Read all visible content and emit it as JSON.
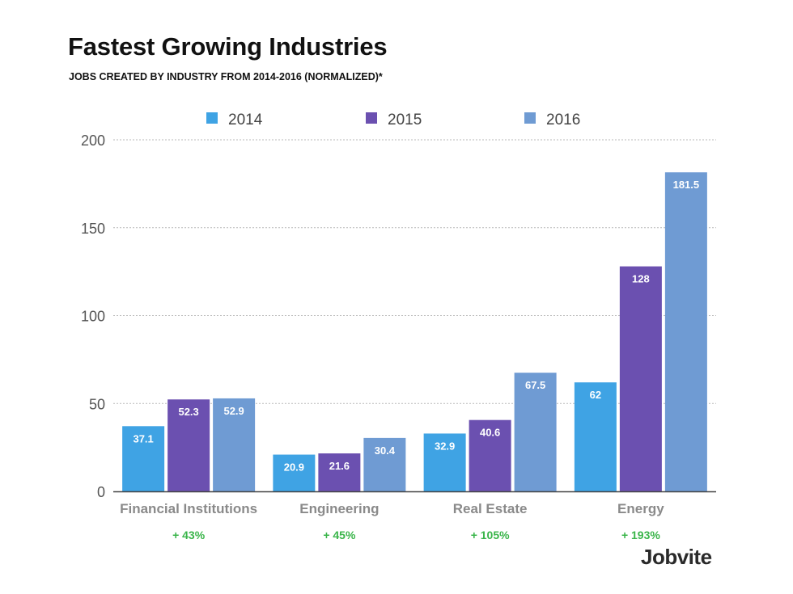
{
  "chart_data": {
    "type": "bar",
    "title": "Fastest Growing Industries",
    "subtitle": "JOBS CREATED BY INDUSTRY FROM 2014-2016 (NORMALIZED)*",
    "xlabel": "",
    "ylabel": "",
    "ylim": [
      0,
      200
    ],
    "yticks": [
      0,
      50,
      100,
      150,
      200
    ],
    "grid": true,
    "legend_position": "top-center",
    "categories": [
      "Financial Institutions",
      "Engineering",
      "Real Estate",
      "Energy"
    ],
    "series": [
      {
        "name": "2014",
        "color": "#3fa3e4",
        "values": [
          37.1,
          20.9,
          32.9,
          62
        ]
      },
      {
        "name": "2015",
        "color": "#6b50b0",
        "values": [
          52.3,
          21.6,
          40.6,
          128
        ]
      },
      {
        "name": "2016",
        "color": "#6f9bd3",
        "values": [
          52.9,
          30.4,
          67.5,
          181.5
        ]
      }
    ],
    "data_labels": [
      [
        "37.1",
        "20.9",
        "32.9",
        "62"
      ],
      [
        "52.3",
        "21.6",
        "40.6",
        "128"
      ],
      [
        "52.9",
        "30.4",
        "67.5",
        "181.5"
      ]
    ],
    "growth_labels": [
      "+ 43%",
      "+ 45%",
      "+ 105%",
      "+ 193%"
    ],
    "growth_color": "#3ab54a"
  },
  "brand": "Jobvite"
}
